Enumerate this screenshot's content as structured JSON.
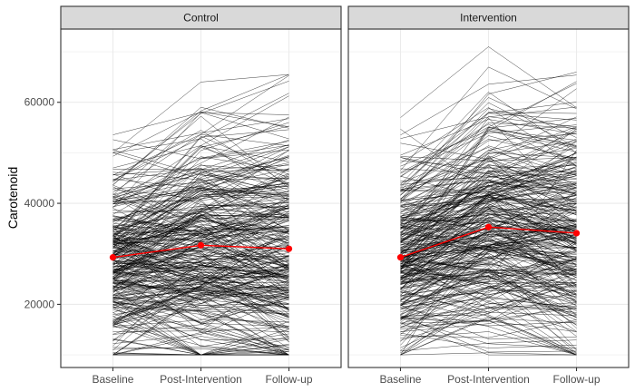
{
  "chart_data": {
    "type": "line",
    "ylabel": "Carotenoid",
    "xlabel": "",
    "categories": [
      "Baseline",
      "Post-Intervention",
      "Follow-up"
    ],
    "ylim": [
      7500,
      74500
    ],
    "yticks": [
      20000,
      40000,
      60000
    ],
    "grid": true,
    "colors": {
      "individual_lines": "#000000",
      "mean_line": "#ff0000",
      "strip_fill": "#d9d9d9",
      "panel_border": "#333333",
      "grid": "#ebebeb"
    },
    "panels": [
      {
        "title": "Control",
        "mean_values": [
          29300,
          31700,
          31000
        ],
        "individual_range": [
          10000,
          65500
        ],
        "individual_count": 330
      },
      {
        "title": "Intervention",
        "mean_values": [
          29300,
          35300,
          34100
        ],
        "individual_range": [
          10000,
          71000
        ],
        "individual_count": 330
      }
    ]
  }
}
